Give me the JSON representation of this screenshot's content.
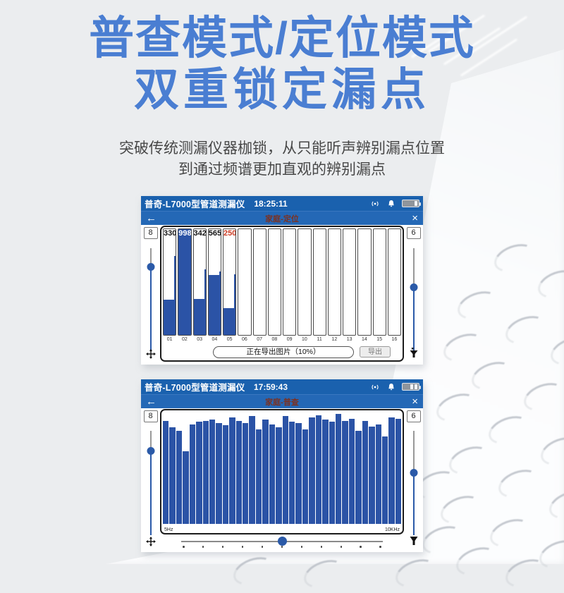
{
  "page": {
    "title_line1": "普查模式/定位模式",
    "title_line2": "双重锁定漏点",
    "subtitle_line1": "突破传统测漏仪器枷锁，从只能听声辨别漏点位置",
    "subtitle_line2": "到通过频谱更加直观的辨别漏点"
  },
  "colors": {
    "title_blue": "#4a7ed2",
    "statusbar_blue": "#1a61ae",
    "navbar_blue": "#2468b6",
    "bar_blue": "#2b53a6",
    "slider_blue": "#2b5aa8",
    "value_red": "#cc3a22",
    "mode_text_red": "#7c3121"
  },
  "device1": {
    "app_title": "普奇-L7000型管道测漏仪",
    "time": "18:25:11",
    "back_label": "←",
    "close_label": "×",
    "mode_label": "家庭-定位",
    "left_gain": "8",
    "right_gain": "6",
    "progress_label": "正在导出图片（10%）",
    "export_label": "导出",
    "chart_data": {
      "type": "bar",
      "title": "定位模式柱状图",
      "categories": [
        "01",
        "02",
        "03",
        "04",
        "05",
        "06",
        "07",
        "08",
        "09",
        "10",
        "11",
        "12",
        "13",
        "14",
        "15",
        "16"
      ],
      "values": [
        330,
        998,
        342,
        565,
        250,
        0,
        0,
        0,
        0,
        0,
        0,
        0,
        0,
        0,
        0,
        0
      ],
      "peaks": [
        745,
        998,
        620,
        600,
        575,
        0,
        0,
        0,
        0,
        0,
        0,
        0,
        0,
        0,
        0,
        0
      ],
      "value_labels": [
        "330",
        "998",
        "342",
        "565",
        "250",
        "",
        "",
        "",
        "",
        "",
        "",
        "",
        "",
        "",
        "",
        ""
      ],
      "label_styles": [
        "dark",
        "light",
        "dark",
        "dark",
        "red",
        "",
        "",
        "",
        "",
        "",
        "",
        "",
        "",
        "",
        "",
        ""
      ],
      "ylim": [
        0,
        998
      ]
    }
  },
  "device2": {
    "app_title": "普奇-L7000型管道测漏仪",
    "time": "17:59:43",
    "back_label": "←",
    "close_label": "×",
    "mode_label": "家庭-普查",
    "left_gain": "8",
    "right_gain": "6",
    "chart_data": {
      "type": "bar",
      "title": "普查模式频谱图",
      "xlabel_start": "5Hz",
      "xlabel_end": "10KHz",
      "ylim_percent": [
        0,
        100
      ],
      "values_percent": [
        92,
        86,
        83,
        65,
        89,
        91,
        92,
        93,
        90,
        88,
        95,
        92,
        90,
        96,
        84,
        93,
        89,
        86,
        96,
        91,
        90,
        84,
        95,
        97,
        93,
        91,
        98,
        92,
        94,
        83,
        92,
        87,
        89,
        78,
        95,
        94
      ]
    }
  }
}
